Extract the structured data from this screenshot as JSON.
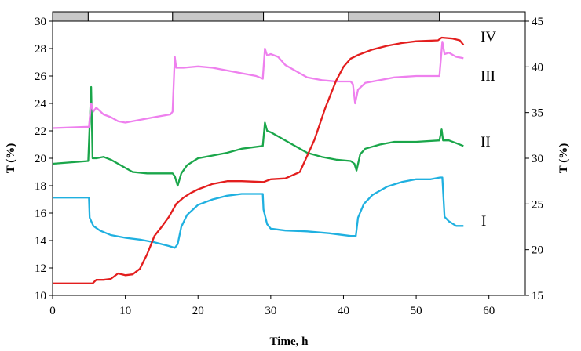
{
  "chart_data": {
    "type": "line",
    "title": "",
    "xlabel": "Time, h",
    "ylabel_left": "T (%)",
    "ylabel_right": "T (%)",
    "xlim": [
      0,
      65
    ],
    "ylim_left": [
      10,
      30
    ],
    "ylim_right": [
      15,
      45
    ],
    "xticks": [
      0,
      10,
      20,
      30,
      40,
      50,
      60
    ],
    "yticks_left": [
      10,
      12,
      14,
      16,
      18,
      20,
      22,
      24,
      26,
      28,
      30
    ],
    "yticks_right": [
      15,
      20,
      25,
      30,
      35,
      40,
      45
    ],
    "grid": false,
    "light_dark_bar": [
      {
        "start": 0,
        "end": 4.9,
        "phase": "dark"
      },
      {
        "start": 4.9,
        "end": 16.5,
        "phase": "light"
      },
      {
        "start": 16.5,
        "end": 29.0,
        "phase": "dark"
      },
      {
        "start": 29.0,
        "end": 40.7,
        "phase": "light"
      },
      {
        "start": 40.7,
        "end": 53.2,
        "phase": "dark"
      },
      {
        "start": 53.2,
        "end": 65,
        "phase": "light"
      }
    ],
    "colors": {
      "I": "#1fb0e0",
      "II": "#1aa64a",
      "III": "#ee80ee",
      "IV": "#e31e1e",
      "bar_dark": "#c8c8c8"
    },
    "series": [
      {
        "name": "I",
        "axis": "right",
        "points": [
          [
            0,
            25.7
          ],
          [
            5.0,
            25.7
          ],
          [
            5.1,
            23.5
          ],
          [
            5.6,
            22.6
          ],
          [
            6.5,
            22.1
          ],
          [
            8,
            21.6
          ],
          [
            10,
            21.3
          ],
          [
            12,
            21.1
          ],
          [
            14,
            20.8
          ],
          [
            16.0,
            20.4
          ],
          [
            16.8,
            20.2
          ],
          [
            17.2,
            20.6
          ],
          [
            17.7,
            22.5
          ],
          [
            18.5,
            23.8
          ],
          [
            20,
            24.9
          ],
          [
            22,
            25.5
          ],
          [
            24,
            25.9
          ],
          [
            26,
            26.1
          ],
          [
            28,
            26.1
          ],
          [
            28.9,
            26.1
          ],
          [
            29.0,
            24.4
          ],
          [
            29.5,
            22.8
          ],
          [
            30,
            22.3
          ],
          [
            32,
            22.1
          ],
          [
            35,
            22.0
          ],
          [
            38,
            21.8
          ],
          [
            41.0,
            21.5
          ],
          [
            41.7,
            21.5
          ],
          [
            42,
            23.5
          ],
          [
            42.8,
            25
          ],
          [
            44,
            26.0
          ],
          [
            46,
            26.9
          ],
          [
            48,
            27.4
          ],
          [
            50,
            27.7
          ],
          [
            52,
            27.7
          ],
          [
            53.3,
            27.9
          ],
          [
            53.6,
            27.9
          ],
          [
            53.9,
            23.6
          ],
          [
            54.5,
            23.1
          ],
          [
            55.5,
            22.6
          ],
          [
            56.5,
            22.6
          ]
        ]
      },
      {
        "name": "II",
        "axis": "left",
        "points": [
          [
            0,
            19.6
          ],
          [
            4.9,
            19.8
          ],
          [
            5.3,
            25.2
          ],
          [
            5.5,
            20.0
          ],
          [
            6,
            20.0
          ],
          [
            7,
            20.1
          ],
          [
            8,
            19.9
          ],
          [
            9,
            19.6
          ],
          [
            10,
            19.3
          ],
          [
            11,
            19.0
          ],
          [
            13,
            18.9
          ],
          [
            16.5,
            18.9
          ],
          [
            16.8,
            18.7
          ],
          [
            17.2,
            18.0
          ],
          [
            17.7,
            18.9
          ],
          [
            18.5,
            19.5
          ],
          [
            20,
            20.0
          ],
          [
            22,
            20.2
          ],
          [
            24,
            20.4
          ],
          [
            26,
            20.7
          ],
          [
            28.9,
            20.9
          ],
          [
            29.2,
            22.6
          ],
          [
            29.5,
            22.0
          ],
          [
            30,
            21.9
          ],
          [
            31,
            21.6
          ],
          [
            33,
            21.0
          ],
          [
            35,
            20.4
          ],
          [
            37,
            20.1
          ],
          [
            39,
            19.9
          ],
          [
            41.0,
            19.8
          ],
          [
            41.5,
            19.6
          ],
          [
            41.8,
            19.1
          ],
          [
            42.3,
            20.3
          ],
          [
            43,
            20.7
          ],
          [
            45,
            21.0
          ],
          [
            47,
            21.2
          ],
          [
            50,
            21.2
          ],
          [
            53.2,
            21.3
          ],
          [
            53.5,
            22.1
          ],
          [
            53.7,
            21.3
          ],
          [
            54.5,
            21.3
          ],
          [
            55.5,
            21.1
          ],
          [
            56.5,
            20.9
          ]
        ]
      },
      {
        "name": "III",
        "axis": "left",
        "points": [
          [
            0,
            22.2
          ],
          [
            5.0,
            22.3
          ],
          [
            5.3,
            24.0
          ],
          [
            5.6,
            23.4
          ],
          [
            6,
            23.7
          ],
          [
            7,
            23.2
          ],
          [
            8,
            23.0
          ],
          [
            9,
            22.7
          ],
          [
            10,
            22.6
          ],
          [
            12,
            22.8
          ],
          [
            14,
            23.0
          ],
          [
            16.2,
            23.2
          ],
          [
            16.5,
            23.4
          ],
          [
            16.8,
            27.4
          ],
          [
            17,
            26.6
          ],
          [
            18,
            26.6
          ],
          [
            20,
            26.7
          ],
          [
            22,
            26.6
          ],
          [
            24,
            26.4
          ],
          [
            26,
            26.2
          ],
          [
            28,
            26.0
          ],
          [
            28.9,
            25.8
          ],
          [
            29.2,
            28.0
          ],
          [
            29.5,
            27.5
          ],
          [
            30,
            27.6
          ],
          [
            31,
            27.4
          ],
          [
            32,
            26.8
          ],
          [
            33,
            26.5
          ],
          [
            35,
            25.9
          ],
          [
            37,
            25.7
          ],
          [
            39,
            25.6
          ],
          [
            41.0,
            25.6
          ],
          [
            41.3,
            25.4
          ],
          [
            41.6,
            24.0
          ],
          [
            42,
            25.0
          ],
          [
            43,
            25.5
          ],
          [
            45,
            25.7
          ],
          [
            47,
            25.9
          ],
          [
            50,
            26.0
          ],
          [
            53.2,
            26.0
          ],
          [
            53.6,
            28.5
          ],
          [
            53.9,
            27.6
          ],
          [
            54.5,
            27.7
          ],
          [
            55.5,
            27.4
          ],
          [
            56.5,
            27.3
          ]
        ]
      },
      {
        "name": "IV",
        "axis": "right",
        "points": [
          [
            0,
            16.3
          ],
          [
            5.5,
            16.3
          ],
          [
            6,
            16.7
          ],
          [
            7,
            16.7
          ],
          [
            8,
            16.8
          ],
          [
            9,
            17.4
          ],
          [
            10,
            17.2
          ],
          [
            11,
            17.3
          ],
          [
            12,
            17.9
          ],
          [
            13,
            19.5
          ],
          [
            14,
            21.5
          ],
          [
            15,
            22.5
          ],
          [
            16,
            23.6
          ],
          [
            17,
            25.0
          ],
          [
            18,
            25.7
          ],
          [
            19,
            26.2
          ],
          [
            20,
            26.6
          ],
          [
            22,
            27.2
          ],
          [
            24,
            27.5
          ],
          [
            26,
            27.5
          ],
          [
            29,
            27.4
          ],
          [
            30,
            27.7
          ],
          [
            32,
            27.8
          ],
          [
            34,
            28.5
          ],
          [
            36,
            32.0
          ],
          [
            37.5,
            35.5
          ],
          [
            39,
            38.5
          ],
          [
            40,
            40.0
          ],
          [
            41,
            40.9
          ],
          [
            42,
            41.3
          ],
          [
            44,
            41.9
          ],
          [
            46,
            42.3
          ],
          [
            48,
            42.6
          ],
          [
            50,
            42.8
          ],
          [
            53,
            42.9
          ],
          [
            53.5,
            43.2
          ],
          [
            55,
            43.1
          ],
          [
            56,
            42.9
          ],
          [
            56.5,
            42.4
          ]
        ]
      }
    ]
  }
}
